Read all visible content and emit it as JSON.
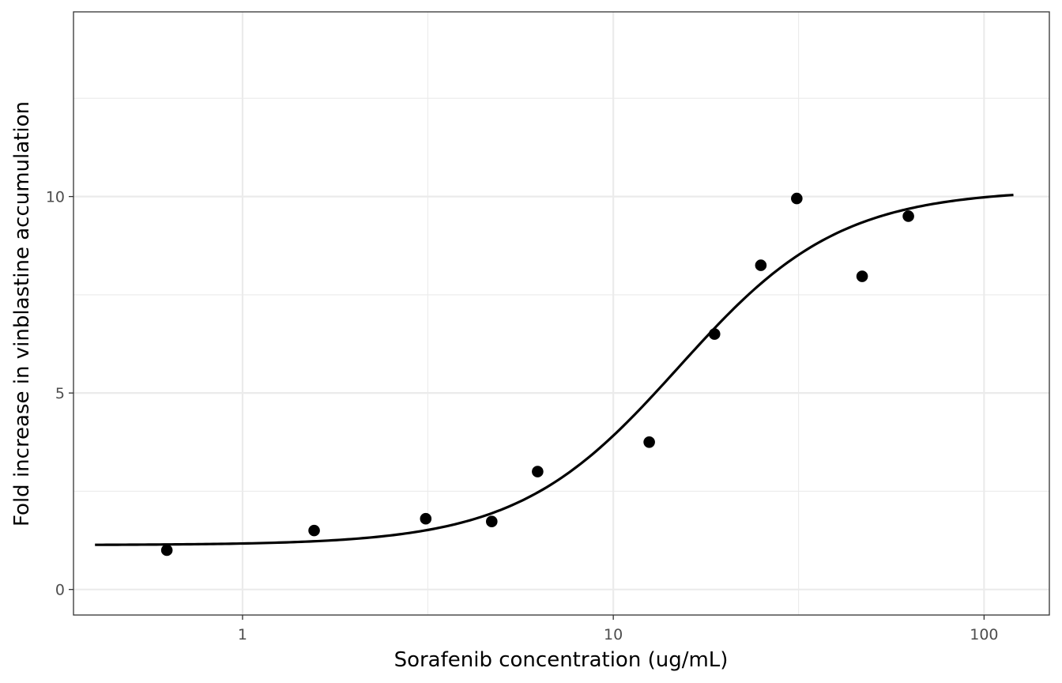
{
  "chart_data": {
    "type": "scatter",
    "xlabel": "Sorafenib concentration (ug/mL)",
    "ylabel": "Fold increase in vinblastine accumulation",
    "x_scale": "log10",
    "xlim": [
      0.35,
      150
    ],
    "ylim": [
      -0.65,
      14.7
    ],
    "x_ticks": [
      1,
      10,
      100
    ],
    "x_tick_labels": [
      "1",
      "10",
      "100"
    ],
    "x_minor_ticks": [
      3.16,
      31.6
    ],
    "y_ticks": [
      0,
      5,
      10
    ],
    "y_tick_labels": [
      "0",
      "5",
      "10"
    ],
    "y_minor_ticks": [
      2.5,
      7.5,
      12.5
    ],
    "grid": true,
    "series": [
      {
        "type": "scatter",
        "color": "#000000",
        "x": [
          0.625,
          1.56,
          3.12,
          4.7,
          6.25,
          12.5,
          18.75,
          25,
          31.25,
          46.9,
          62.5
        ],
        "y": [
          1.0,
          1.5,
          1.8,
          1.73,
          3.0,
          3.75,
          6.5,
          8.25,
          9.95,
          7.97,
          9.5
        ]
      },
      {
        "type": "line",
        "color": "#000000",
        "fit": {
          "model": "four-parameter logistic",
          "bottom": 1.13,
          "top": 10.18,
          "ec50": 15.0,
          "hill": 2.0,
          "x_range": [
            0.4,
            120
          ]
        }
      }
    ]
  }
}
